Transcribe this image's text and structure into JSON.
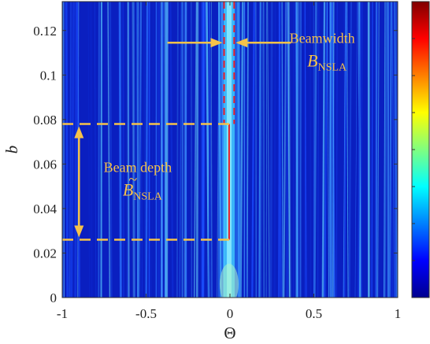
{
  "chart_data": {
    "type": "heatmap",
    "xlabel": "Θ",
    "ylabel": "b",
    "xlim": [
      -1,
      1
    ],
    "ylim": [
      0,
      0.133
    ],
    "x_ticks": [
      "-1",
      "-0.5",
      "0",
      "0.5",
      "1"
    ],
    "y_ticks": [
      "0",
      "0.02",
      "0.04",
      "0.06",
      "0.08",
      "0.1",
      "0.12"
    ],
    "x_tick_values": [
      -1,
      -0.5,
      0,
      0.5,
      1
    ],
    "y_tick_values": [
      0,
      0.02,
      0.04,
      0.06,
      0.08,
      0.1,
      0.12
    ],
    "colormap": "jet",
    "colorbar": {
      "location": "right",
      "tick_labels_visible": false
    },
    "colors": {
      "annotation": "#f5c24a",
      "main_lobe_marker": "#e8202a"
    },
    "main_lobe_center": -0.005,
    "main_lobe_edges": [
      -0.035,
      0.025
    ],
    "beam_depth_range": [
      0.026,
      0.078
    ],
    "beamwidth_arrow_y": 0.1145,
    "beam_depth_arrow_x": -0.9,
    "annotations": {
      "beamwidth": {
        "label": "Beamwidth",
        "symbol": "B",
        "subscript": "NSLA",
        "x": 0.55,
        "y": 0.1165
      },
      "beam_depth": {
        "label": "Beam depth",
        "symbol": "B",
        "accent": "~",
        "subscript": "NSLA",
        "x": -0.55,
        "y": 0.0585
      }
    }
  }
}
